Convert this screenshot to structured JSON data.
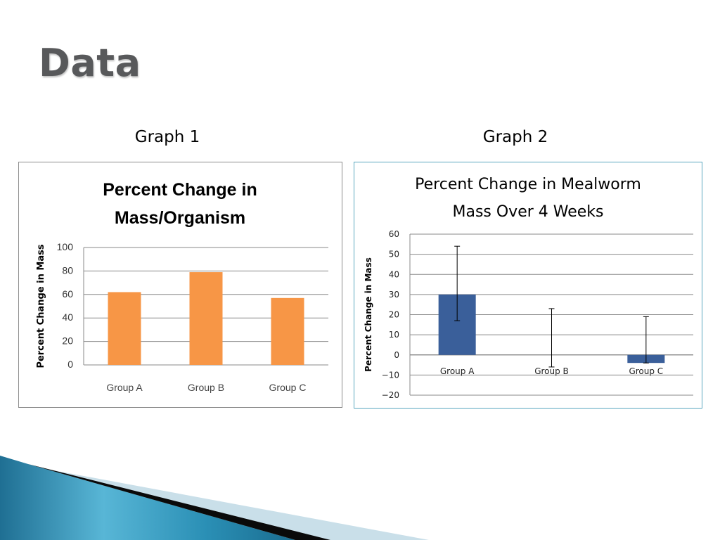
{
  "slide": {
    "title": "Data",
    "graph1_caption": "Graph 1",
    "graph2_caption": "Graph 2"
  },
  "colors": {
    "graph1_bar": "#f79646",
    "graph2_bar": "#3a5f9a",
    "title_text": "#58595b",
    "frame1_border": "#8c8c8c",
    "frame2_border": "#5aa7bf"
  },
  "chart_data": [
    {
      "type": "bar",
      "title": [
        "Percent Change in",
        "Mass/Organism"
      ],
      "ylabel": "Percent Change in Mass",
      "xlabel": "",
      "categories": [
        "Group A",
        "Group B",
        "Group C"
      ],
      "values": [
        62,
        79,
        57
      ],
      "ylim": [
        0,
        100
      ],
      "yticks": [
        0,
        20,
        40,
        60,
        80,
        100
      ],
      "grid": true,
      "legend": "none"
    },
    {
      "type": "bar",
      "title": [
        "Percent Change in Mealworm",
        "Mass Over 4 Weeks"
      ],
      "ylabel": "Percent Change in Mass",
      "xlabel": "",
      "categories": [
        "Group A",
        "Group B",
        "Group C"
      ],
      "values": [
        30,
        0,
        -4
      ],
      "error_low": [
        17,
        -6,
        -4
      ],
      "error_high": [
        54,
        23,
        19
      ],
      "ylim": [
        -20,
        60
      ],
      "yticks": [
        -20,
        -10,
        0,
        10,
        20,
        30,
        40,
        50,
        60
      ],
      "grid": true,
      "legend": "none"
    }
  ]
}
